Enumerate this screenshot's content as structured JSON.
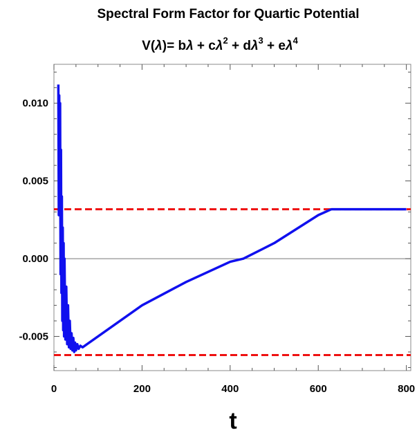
{
  "chart_data": {
    "type": "line",
    "title": "Spectral Form Factor for Quartic Potential",
    "subtitle": {
      "prefix": "V(",
      "lambda": "λ",
      "mid": ")= b",
      "t1": " + c",
      "t2": " + d",
      "t3": " + e",
      "exp2": "2",
      "exp3": "3",
      "exp4": "4"
    },
    "xlabel": "t",
    "ylabel": "",
    "xlim": [
      0,
      810
    ],
    "ylim": [
      -0.0072,
      0.0125
    ],
    "xticks": [
      0,
      200,
      400,
      600,
      800
    ],
    "xtick_labels": [
      "0",
      "200",
      "400",
      "600",
      "800"
    ],
    "yticks": [
      -0.005,
      0.0,
      0.005,
      0.01
    ],
    "ytick_labels": [
      "-0.005",
      "0.000",
      "0.005",
      "0.010"
    ],
    "zero_line": true,
    "grid": false,
    "reference_lines": [
      {
        "name": "upper",
        "y": 0.00318,
        "color": "#ee1111",
        "style": "dashed"
      },
      {
        "name": "lower",
        "y": -0.0062,
        "color": "#ee1111",
        "style": "dashed"
      }
    ],
    "series": [
      {
        "color": "#1010ee",
        "x": [
          10,
          11,
          12,
          13,
          14,
          15,
          16,
          17,
          18,
          19,
          20,
          21,
          22,
          23,
          24,
          26,
          28,
          30,
          32,
          34,
          36,
          38,
          40,
          42,
          44,
          46,
          48,
          50,
          53,
          56,
          60,
          65,
          70,
          80,
          90,
          100,
          110,
          120,
          150,
          200,
          300,
          400,
          430,
          500,
          600,
          630,
          700,
          800
        ],
        "y": [
          0.0112,
          0.0028,
          0.0105,
          0.0035,
          0.01,
          -0.001,
          0.007,
          -0.0022,
          0.004,
          -0.004,
          0.002,
          -0.0046,
          0.001,
          -0.005,
          0.0,
          -0.0052,
          -0.0018,
          -0.0055,
          -0.003,
          -0.0057,
          -0.004,
          -0.0058,
          -0.0048,
          -0.0059,
          -0.0051,
          -0.006,
          -0.0054,
          -0.0059,
          -0.0055,
          -0.0058,
          -0.0056,
          -0.0057,
          -0.0056,
          -0.0054,
          -0.0052,
          -0.005,
          -0.0048,
          -0.0046,
          -0.004,
          -0.003,
          -0.0015,
          -0.0002,
          0.0,
          0.001,
          0.0028,
          0.00318,
          0.00318,
          0.00318
        ]
      }
    ]
  }
}
